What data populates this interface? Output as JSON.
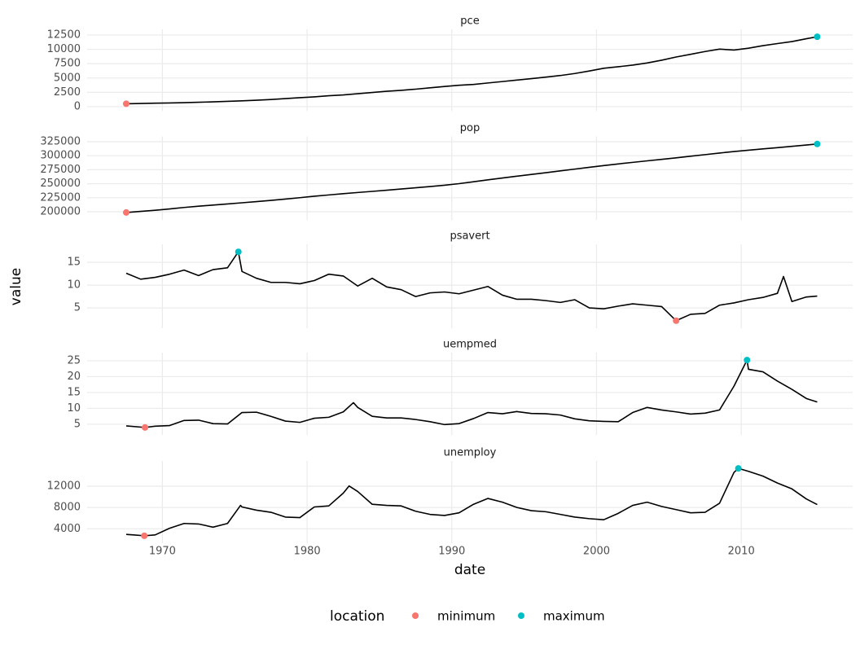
{
  "chart_data": [
    {
      "type": "line",
      "title": "pce",
      "color": "#000000",
      "x": [
        1967.5,
        1968.5,
        1969.5,
        1970.5,
        1971.5,
        1972.5,
        1973.5,
        1974.5,
        1975.5,
        1976.5,
        1977.5,
        1978.5,
        1979.5,
        1980.5,
        1981.5,
        1982.5,
        1983.5,
        1984.5,
        1985.5,
        1986.5,
        1987.5,
        1988.5,
        1989.5,
        1990.5,
        1991.5,
        1992.5,
        1993.5,
        1994.5,
        1995.5,
        1996.5,
        1997.5,
        1998.5,
        1999.5,
        2000.5,
        2001.5,
        2002.5,
        2003.5,
        2004.5,
        2005.5,
        2006.5,
        2007.5,
        2008.5,
        2009.5,
        2010.5,
        2011.5,
        2012.5,
        2013.5,
        2014.5,
        2015.25
      ],
      "values": [
        507,
        550,
        600,
        640,
        690,
        760,
        840,
        920,
        1010,
        1120,
        1250,
        1400,
        1570,
        1710,
        1900,
        2050,
        2260,
        2470,
        2680,
        2850,
        3050,
        3290,
        3520,
        3730,
        3870,
        4130,
        4380,
        4640,
        4880,
        5150,
        5430,
        5780,
        6220,
        6700,
        6960,
        7250,
        7620,
        8100,
        8660,
        9130,
        9620,
        10030,
        9880,
        10200,
        10640,
        11000,
        11350,
        11850,
        12194
      ],
      "ylim": [
        -77,
        12778
      ],
      "yticks": [
        0,
        2500,
        5000,
        7500,
        10000,
        12500
      ],
      "min_point": {
        "x": 1967.5,
        "value": 507
      },
      "max_point": {
        "x": 2015.25,
        "value": 12194
      }
    },
    {
      "type": "line",
      "title": "pop",
      "color": "#000000",
      "x": [
        1967.5,
        1968.5,
        1969.5,
        1970.5,
        1971.5,
        1972.5,
        1973.5,
        1974.5,
        1975.5,
        1976.5,
        1977.5,
        1978.5,
        1979.5,
        1980.5,
        1981.5,
        1982.5,
        1983.5,
        1984.5,
        1985.5,
        1986.5,
        1987.5,
        1988.5,
        1989.5,
        1990.5,
        1991.5,
        1992.5,
        1993.5,
        1994.5,
        1995.5,
        1996.5,
        1997.5,
        1998.5,
        1999.5,
        2000.5,
        2001.5,
        2002.5,
        2003.5,
        2004.5,
        2005.5,
        2006.5,
        2007.5,
        2008.5,
        2009.5,
        2010.5,
        2011.5,
        2012.5,
        2013.5,
        2014.5,
        2015.25
      ],
      "values": [
        198712,
        200700,
        202700,
        205050,
        207660,
        209900,
        211900,
        213850,
        215980,
        218040,
        220240,
        222580,
        225060,
        227720,
        229970,
        232190,
        234310,
        236350,
        238470,
        240650,
        242800,
        245020,
        247340,
        250130,
        253490,
        256890,
        260260,
        263440,
        266560,
        269670,
        272910,
        276120,
        279300,
        282430,
        285310,
        288110,
        290820,
        293460,
        296190,
        299030,
        301900,
        304720,
        307440,
        309800,
        312100,
        314400,
        316700,
        319000,
        320887
      ],
      "ylim": [
        192603,
        326996
      ],
      "yticks": [
        200000,
        225000,
        250000,
        275000,
        300000,
        325000
      ],
      "min_point": {
        "x": 1967.5,
        "value": 198712
      },
      "max_point": {
        "x": 2015.25,
        "value": 320887
      }
    },
    {
      "type": "line",
      "title": "psavert",
      "color": "#000000",
      "x": [
        1967.5,
        1968.5,
        1969.5,
        1970.5,
        1971.5,
        1972.5,
        1973.5,
        1974.5,
        1975.25,
        1975.5,
        1976.5,
        1977.5,
        1978.5,
        1979.5,
        1980.5,
        1981.5,
        1982.5,
        1983.5,
        1984.5,
        1985.5,
        1986.5,
        1987.5,
        1988.5,
        1989.5,
        1990.5,
        1991.5,
        1992.5,
        1993.5,
        1994.5,
        1995.5,
        1996.5,
        1997.5,
        1998.5,
        1999.5,
        2000.5,
        2001.5,
        2002.5,
        2003.5,
        2004.5,
        2005.5,
        2006.5,
        2007.5,
        2008.5,
        2009.5,
        2010.5,
        2011.5,
        2012.5,
        2012.92,
        2013.5,
        2014.5,
        2015.25
      ],
      "values": [
        12.6,
        11.3,
        11.7,
        12.4,
        13.3,
        12.1,
        13.4,
        13.8,
        17.3,
        13.0,
        11.5,
        10.6,
        10.6,
        10.3,
        11.0,
        12.4,
        12.0,
        9.8,
        11.5,
        9.6,
        9.0,
        7.5,
        8.3,
        8.5,
        8.1,
        8.9,
        9.7,
        7.8,
        6.9,
        6.9,
        6.6,
        6.2,
        6.8,
        5.0,
        4.8,
        5.4,
        5.9,
        5.6,
        5.3,
        2.2,
        3.6,
        3.8,
        5.6,
        6.1,
        6.8,
        7.3,
        8.2,
        11.9,
        6.4,
        7.4,
        7.6
      ],
      "ylim": [
        1.445,
        18.055
      ],
      "yticks": [
        5,
        10,
        15
      ],
      "min_point": {
        "x": 2005.5,
        "value": 2.2
      },
      "max_point": {
        "x": 1975.25,
        "value": 17.3
      }
    },
    {
      "type": "line",
      "title": "uempmed",
      "color": "#000000",
      "x": [
        1967.5,
        1968.8,
        1969.5,
        1970.5,
        1971.5,
        1972.5,
        1973.5,
        1974.5,
        1975.5,
        1976.5,
        1977.5,
        1978.5,
        1979.5,
        1980.5,
        1981.5,
        1982.5,
        1983.2,
        1983.5,
        1984.5,
        1985.5,
        1986.5,
        1987.5,
        1988.5,
        1989.5,
        1990.5,
        1991.5,
        1992.5,
        1993.5,
        1994.5,
        1995.5,
        1996.5,
        1997.5,
        1998.5,
        1999.5,
        2000.5,
        2001.5,
        2002.5,
        2003.5,
        2004.5,
        2005.5,
        2006.5,
        2007.5,
        2008.5,
        2009.5,
        2010.4,
        2010.5,
        2011.5,
        2012.5,
        2013.5,
        2014.5,
        2015.25
      ],
      "values": [
        4.5,
        4.0,
        4.4,
        4.6,
        6.2,
        6.3,
        5.2,
        5.1,
        8.7,
        8.8,
        7.5,
        6.0,
        5.6,
        6.9,
        7.2,
        8.9,
        11.8,
        10.3,
        7.5,
        7.0,
        7.0,
        6.5,
        5.8,
        4.9,
        5.2,
        6.8,
        8.7,
        8.3,
        9.0,
        8.4,
        8.3,
        7.9,
        6.7,
        6.1,
        5.9,
        5.8,
        8.7,
        10.3,
        9.5,
        8.9,
        8.2,
        8.5,
        9.5,
        17.0,
        25.2,
        22.3,
        21.5,
        18.6,
        16.0,
        13.1,
        12.0
      ],
      "ylim": [
        2.94,
        26.26
      ],
      "yticks": [
        5,
        10,
        15,
        20,
        25
      ],
      "min_point": {
        "x": 1968.8,
        "value": 4.0
      },
      "max_point": {
        "x": 2010.4,
        "value": 25.2
      }
    },
    {
      "type": "line",
      "title": "unemploy",
      "color": "#000000",
      "x": [
        1967.5,
        1968.0,
        1968.75,
        1969.5,
        1970.5,
        1971.5,
        1972.5,
        1973.5,
        1974.5,
        1975.4,
        1975.5,
        1976.5,
        1977.5,
        1978.5,
        1979.5,
        1980.5,
        1981.5,
        1982.5,
        1982.9,
        1983.5,
        1984.5,
        1985.5,
        1986.5,
        1987.5,
        1988.5,
        1989.5,
        1990.5,
        1991.5,
        1992.5,
        1993.5,
        1994.5,
        1995.5,
        1996.5,
        1997.5,
        1998.5,
        1999.5,
        2000.5,
        2001.5,
        2002.5,
        2003.5,
        2004.5,
        2005.5,
        2006.5,
        2007.5,
        2008.5,
        2009.5,
        2009.8,
        2010.5,
        2011.5,
        2012.5,
        2013.5,
        2014.5,
        2015.25
      ],
      "values": [
        2944,
        2850,
        2685,
        2850,
        4100,
        5000,
        4900,
        4300,
        5000,
        8400,
        8100,
        7500,
        7100,
        6200,
        6100,
        8100,
        8300,
        10700,
        12050,
        11000,
        8600,
        8400,
        8300,
        7300,
        6700,
        6500,
        7000,
        8600,
        9700,
        9000,
        8000,
        7400,
        7200,
        6700,
        6200,
        5900,
        5700,
        6900,
        8400,
        9000,
        8200,
        7600,
        7000,
        7100,
        8800,
        14600,
        15352,
        14800,
        13900,
        12600,
        11500,
        9600,
        8549
      ],
      "ylim": [
        2052,
        15985
      ],
      "yticks": [
        4000,
        8000,
        12000
      ],
      "min_point": {
        "x": 1968.75,
        "value": 2685
      },
      "max_point": {
        "x": 2009.8,
        "value": 15352
      }
    }
  ],
  "axes": {
    "x_label": "date",
    "y_label": "value",
    "xlim": [
      1964.8,
      2017.7
    ],
    "xticks": [
      1970,
      1980,
      1990,
      2000,
      2010
    ],
    "grid": true
  },
  "legend": {
    "title": "location",
    "position": "bottom",
    "entries": [
      {
        "name": "minimum",
        "color": "#f8766d"
      },
      {
        "name": "maximum",
        "color": "#00bfc4"
      }
    ]
  }
}
